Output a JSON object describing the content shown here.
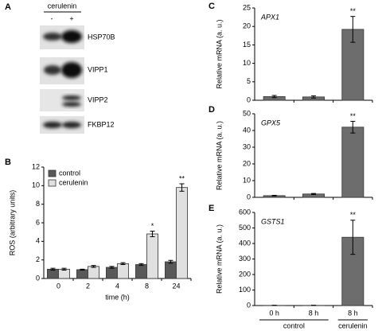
{
  "panel_a": {
    "panel": "A",
    "treatment": "cerulenin",
    "lanes": [
      "-",
      "+"
    ],
    "proteins": [
      "HSP70B",
      "VIPP1",
      "VIPP2",
      "FKBP12"
    ]
  },
  "chart_data": [
    {
      "type": "bar",
      "panel": "B",
      "x_label": "time (h)",
      "y_label": "ROS (arbitrary units)",
      "categories": [
        "0",
        "2",
        "4",
        "8",
        "24"
      ],
      "ylim": [
        0,
        12
      ],
      "yticks": [
        0,
        2,
        4,
        6,
        8,
        10,
        12
      ],
      "legend": "top-left",
      "series": [
        {
          "name": "control",
          "color": "#595959",
          "values": [
            1.0,
            0.95,
            1.2,
            1.5,
            1.8
          ],
          "errors": [
            0.1,
            0.05,
            0.1,
            0.1,
            0.15
          ],
          "annotations": [
            null,
            null,
            null,
            null,
            null
          ]
        },
        {
          "name": "cerulenin",
          "color": "#e0e0e0",
          "values": [
            1.0,
            1.3,
            1.6,
            4.8,
            9.8
          ],
          "errors": [
            0.1,
            0.1,
            0.1,
            0.3,
            0.4
          ],
          "annotations": [
            null,
            null,
            null,
            "*",
            "**"
          ]
        }
      ]
    },
    {
      "type": "bar",
      "panel": "C",
      "title": "APX1",
      "y_label": "Relative mRNA (a. u.)",
      "categories": [
        null,
        null,
        null
      ],
      "ylim": [
        0,
        25
      ],
      "yticks": [
        0,
        5,
        10,
        15,
        20,
        25
      ],
      "series": [
        {
          "color": "#6d6d6d",
          "values": [
            1.0,
            0.9,
            19.2
          ],
          "errors": [
            0.3,
            0.3,
            3.5
          ],
          "annotations": [
            null,
            null,
            "**"
          ]
        }
      ]
    },
    {
      "type": "bar",
      "panel": "D",
      "title": "GPX5",
      "y_label": "Relative mRNA (a. u.)",
      "categories": [
        null,
        null,
        null
      ],
      "ylim": [
        0,
        50
      ],
      "yticks": [
        0,
        10,
        20,
        30,
        40,
        50
      ],
      "series": [
        {
          "color": "#6d6d6d",
          "values": [
            1.0,
            2.0,
            42
          ],
          "errors": [
            0.2,
            0.3,
            3.5
          ],
          "annotations": [
            null,
            null,
            "**"
          ]
        }
      ]
    },
    {
      "type": "bar",
      "panel": "E",
      "title": "GSTS1",
      "y_label": "Relative mRNA (a. u.)",
      "categories": [
        "0 h",
        "8 h",
        "8 h"
      ],
      "group_labels": [
        "control",
        "cerulenin"
      ],
      "ylim": [
        0,
        600
      ],
      "yticks": [
        0,
        100,
        200,
        300,
        400,
        500,
        600
      ],
      "series": [
        {
          "color": "#6d6d6d",
          "values": [
            1,
            1,
            440
          ],
          "errors": [
            1,
            1,
            110
          ],
          "annotations": [
            null,
            null,
            "**"
          ]
        }
      ]
    }
  ]
}
